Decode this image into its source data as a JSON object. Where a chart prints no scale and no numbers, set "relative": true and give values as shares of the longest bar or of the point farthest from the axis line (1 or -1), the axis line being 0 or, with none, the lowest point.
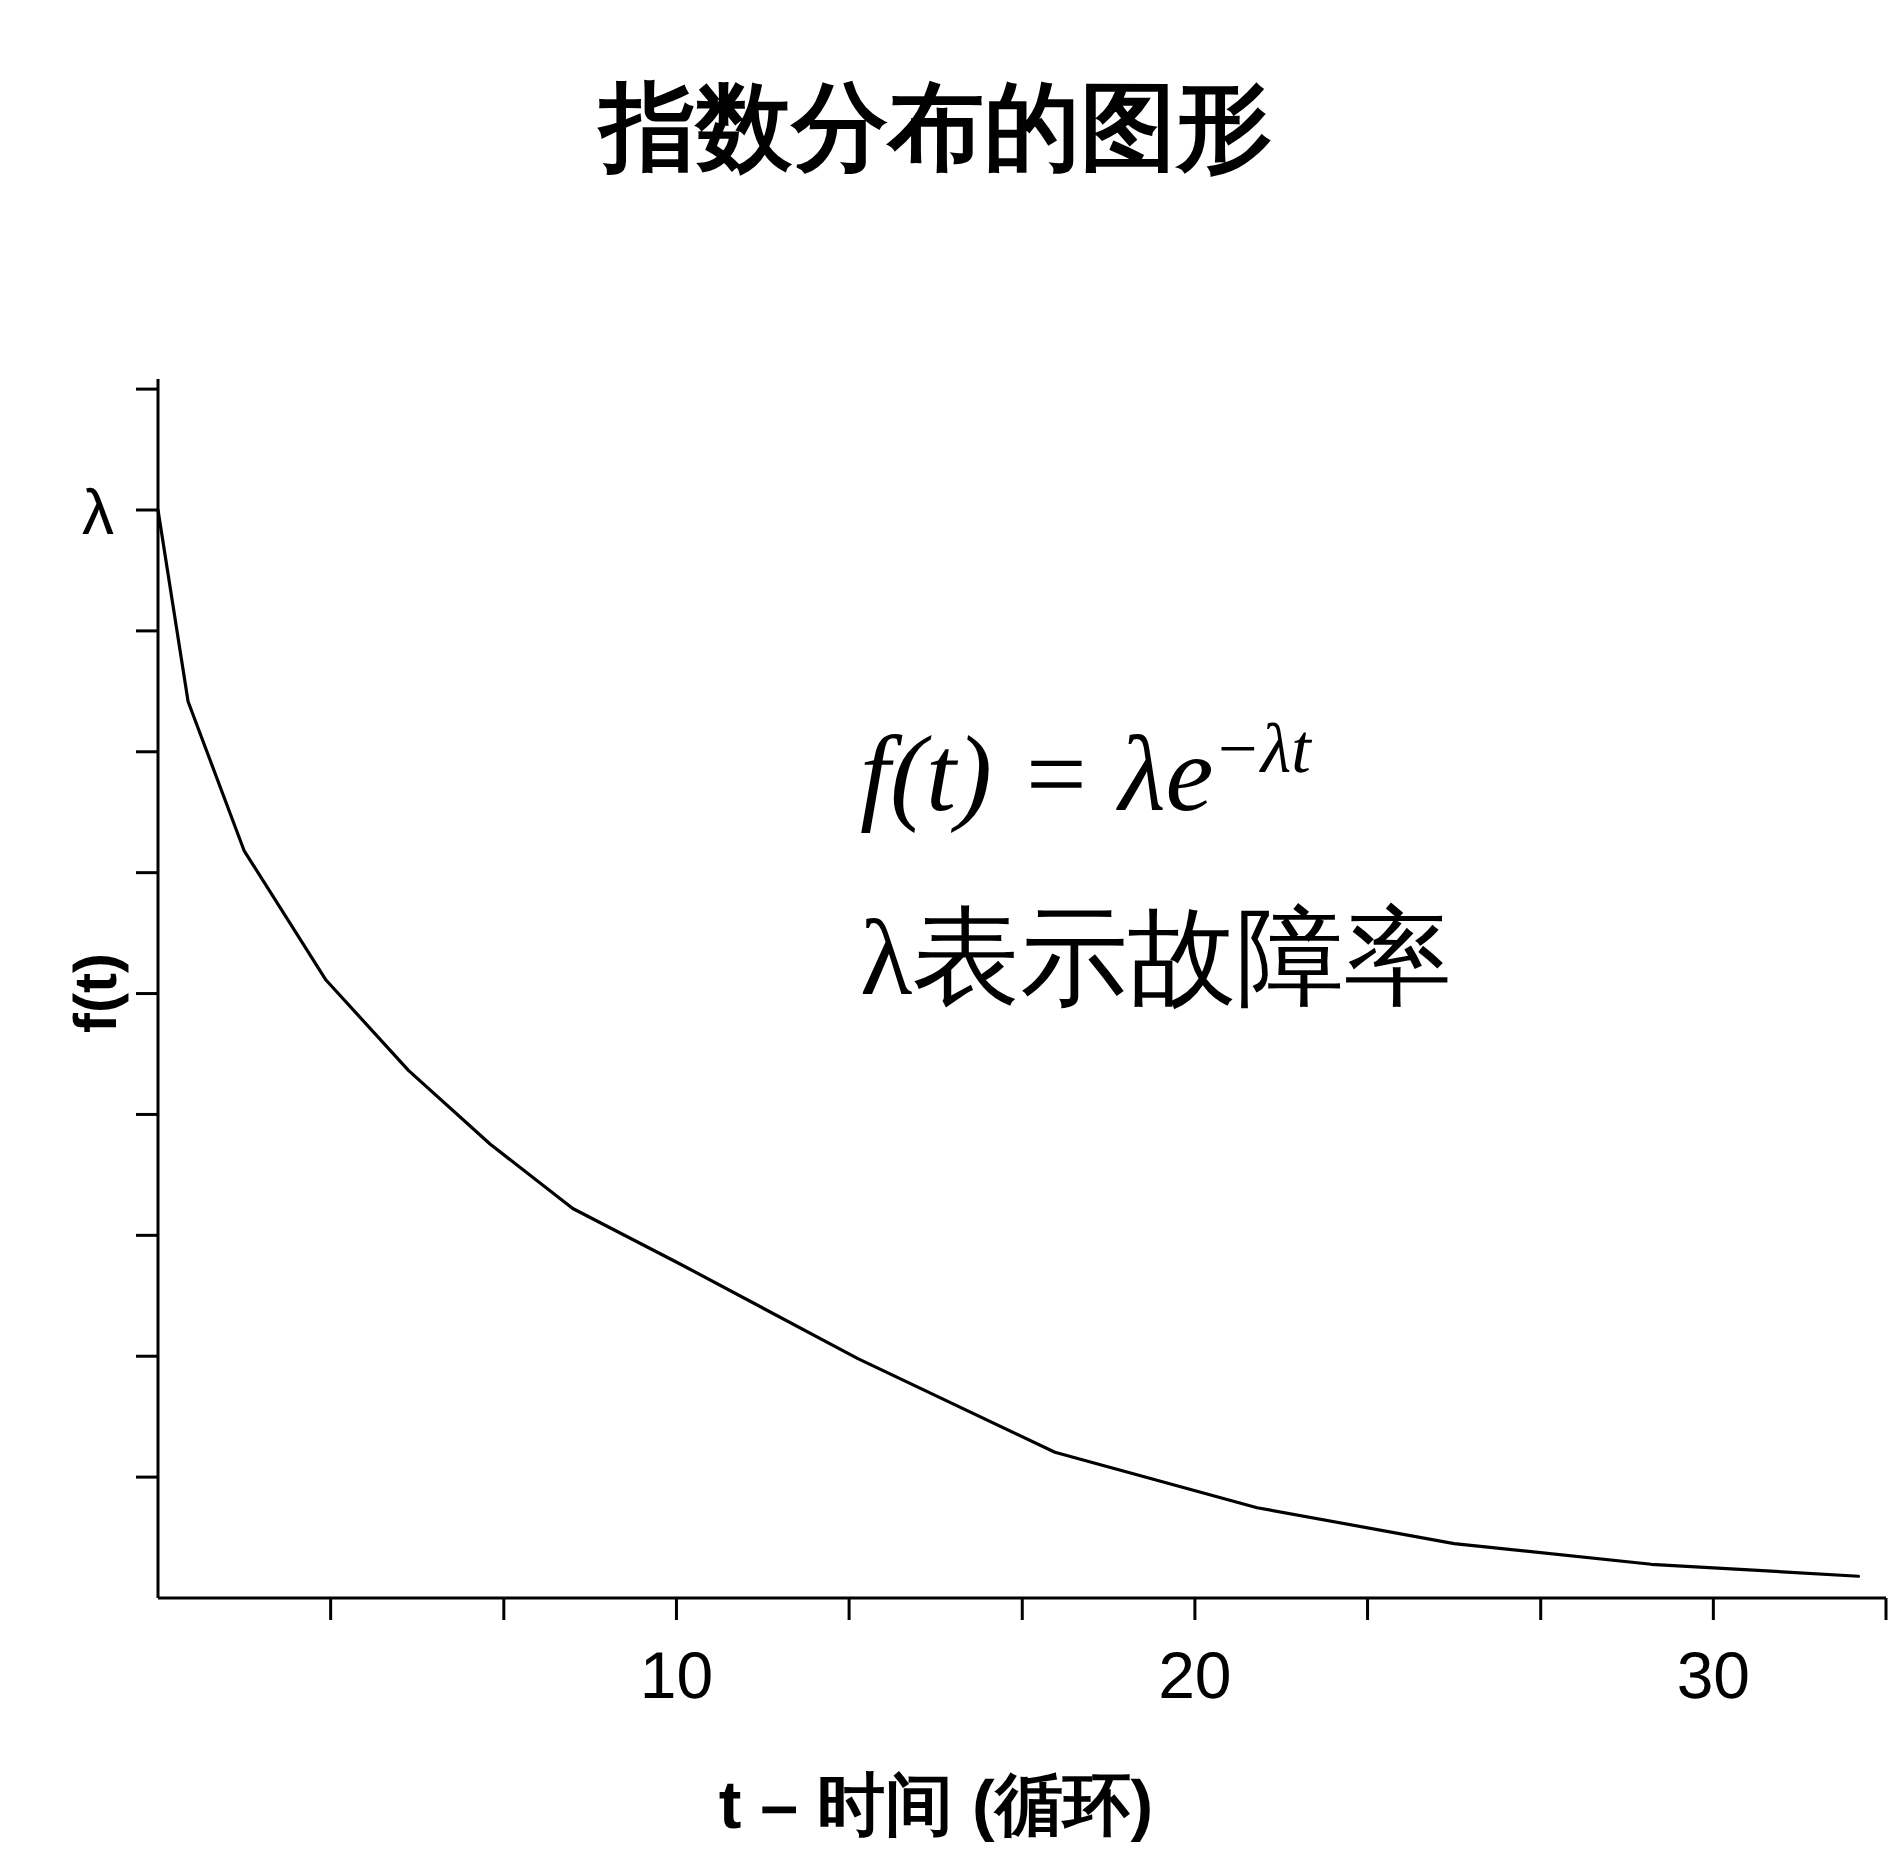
{
  "chart_data": {
    "type": "line",
    "title": "指数分布的图形",
    "xlabel": "t – 时间 (循环)",
    "ylabel": "f(t)",
    "relative": true,
    "x": [
      0,
      0.58,
      1.66,
      3.24,
      4.83,
      6.41,
      8.0,
      10.07,
      13.5,
      17.3,
      21.2,
      25.0,
      28.8,
      32.8
    ],
    "values": [
      1,
      0.824,
      0.687,
      0.568,
      0.485,
      0.417,
      0.358,
      0.307,
      0.22,
      0.134,
      0.083,
      0.05,
      0.031,
      0.02
    ],
    "color": "#000000",
    "xlim": [
      0,
      33.33
    ],
    "xticks": [
      {
        "value": 3.33,
        "label": null
      },
      {
        "value": 6.67,
        "label": null
      },
      10,
      {
        "value": 13.33,
        "label": null
      },
      {
        "value": 16.67,
        "label": null
      },
      20,
      {
        "value": 23.33,
        "label": null
      },
      {
        "value": 26.67,
        "label": null
      },
      30,
      {
        "value": 33.33,
        "label": null
      }
    ],
    "annotations": [
      {
        "text": "λ",
        "x": 0,
        "y": 1
      },
      "f(t) = λe$^{−λt}$",
      "λ表示故障率"
    ]
  }
}
